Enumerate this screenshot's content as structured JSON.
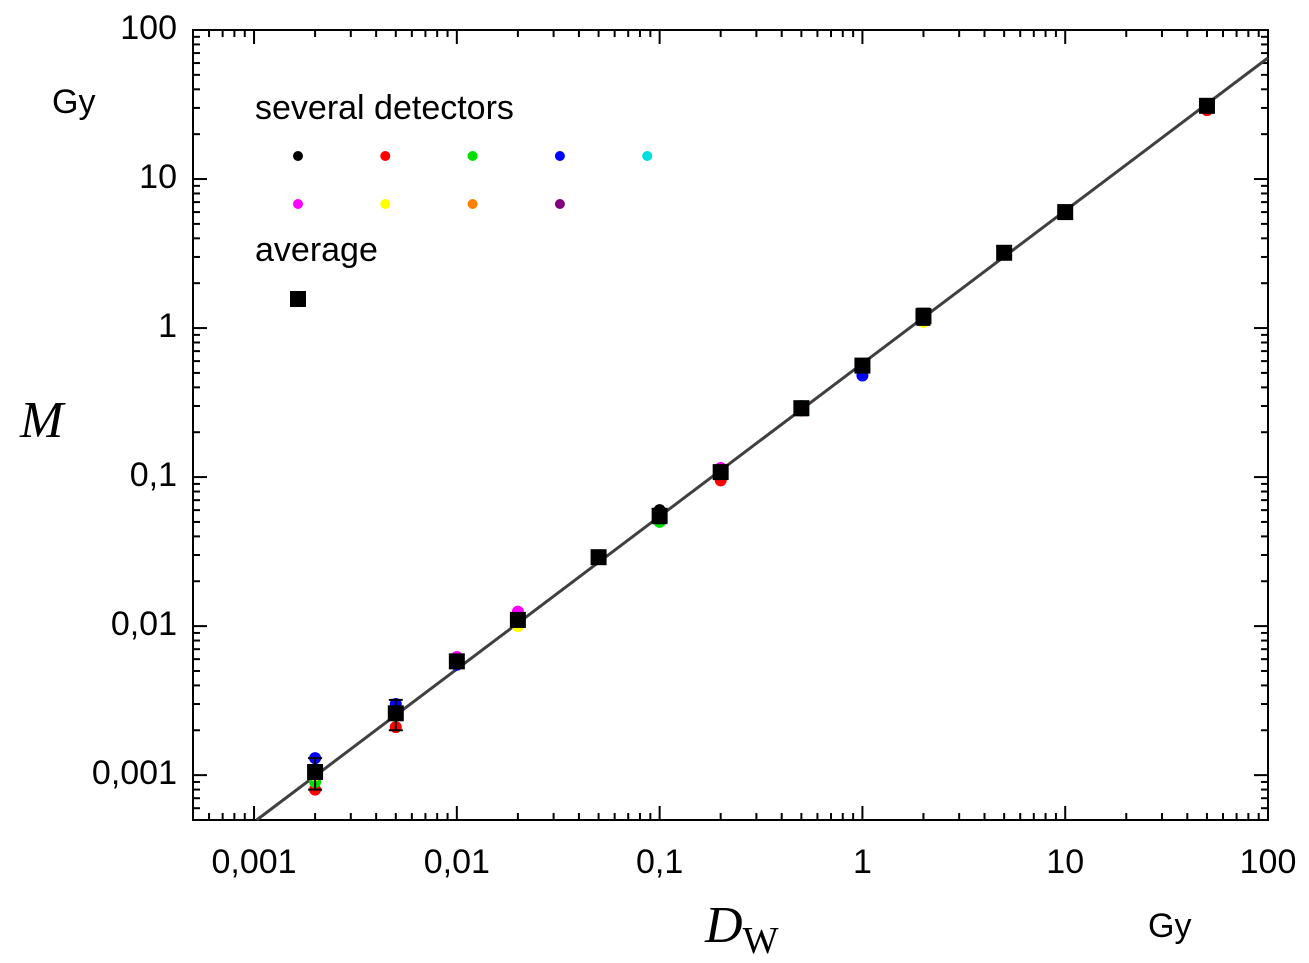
{
  "chart_data": {
    "type": "scatter",
    "xlim": [
      0.0005,
      100
    ],
    "ylim": [
      0.0005,
      100
    ],
    "log_x": true,
    "log_y": true,
    "minor_ticks": true,
    "xticks": [
      {
        "value": 0.001,
        "label": "0,001"
      },
      {
        "value": 0.01,
        "label": "0,01"
      },
      {
        "value": 0.1,
        "label": "0,1"
      },
      1,
      10,
      100
    ],
    "yticks": [
      {
        "value": 0.001,
        "label": "0,001"
      },
      {
        "value": 0.01,
        "label": "0,01"
      },
      {
        "value": 0.1,
        "label": "0,1"
      },
      1,
      10,
      100
    ],
    "y_label": "M",
    "y_unit": "Gy",
    "x_label": "D",
    "x_label_sub": "W",
    "x_unit": "Gy",
    "detectors_label": "several detectors",
    "average_label": "average",
    "x": [
      0.002,
      0.005,
      0.01,
      0.02,
      0.05,
      0.1,
      0.2,
      0.5,
      1,
      2,
      5,
      10,
      50
    ],
    "series": [
      {
        "color": "#000000",
        "values": [
          0.001,
          0.0026,
          0.0058,
          0.011,
          0.029,
          0.06,
          0.108,
          0.29,
          0.56,
          1.2,
          3.2,
          6.0,
          31
        ]
      },
      {
        "color": "#ff0000",
        "values": [
          0.0008,
          0.0021,
          0.006,
          0.012,
          0.029,
          0.056,
          0.095,
          0.28,
          0.55,
          1.2,
          3.2,
          6.0,
          29
        ]
      },
      {
        "color": "#00e000",
        "values": [
          0.0009,
          0.0025,
          0.0058,
          0.011,
          0.029,
          0.05,
          0.108,
          0.3,
          0.56,
          1.2,
          3.2,
          6.0,
          31
        ]
      },
      {
        "color": "#0000ff",
        "values": [
          0.0013,
          0.003,
          0.0055,
          0.011,
          0.029,
          0.055,
          0.11,
          0.29,
          0.48,
          1.2,
          3.2,
          6.0,
          31
        ]
      },
      {
        "color": "#00e0e0",
        "values": [
          null,
          null,
          null,
          null,
          0.029,
          null,
          null,
          null,
          null,
          null,
          null,
          null,
          null
        ]
      },
      {
        "color": "#ff00ff",
        "values": [
          0.001,
          0.0026,
          0.0062,
          0.0125,
          0.029,
          0.056,
          0.115,
          0.29,
          0.56,
          1.2,
          3.2,
          6.0,
          31
        ]
      },
      {
        "color": "#ffff00",
        "values": [
          0.001,
          0.0026,
          0.0058,
          0.01,
          0.029,
          0.055,
          0.108,
          0.29,
          0.56,
          1.1,
          3.2,
          6.0,
          31
        ]
      },
      {
        "color": "#ff8000",
        "values": [
          null,
          null,
          null,
          null,
          null,
          null,
          null,
          null,
          null,
          null,
          null,
          null,
          null
        ]
      },
      {
        "color": "#800080",
        "values": [
          null,
          null,
          null,
          null,
          null,
          null,
          0.11,
          null,
          null,
          null,
          null,
          null,
          null
        ]
      }
    ],
    "average": {
      "color": "#000000",
      "values": [
        0.00105,
        0.0026,
        0.0058,
        0.011,
        0.029,
        0.055,
        0.108,
        0.29,
        0.56,
        1.2,
        3.2,
        6.0,
        31
      ],
      "errors": [
        0.00025,
        0.0006,
        0.0005,
        0.001,
        0.002,
        0.006,
        0.01,
        0.03,
        0.05,
        0.15,
        0.2,
        0.5,
        2
      ]
    },
    "fit": {
      "color": "#404040",
      "x": [
        0.00103,
        100
      ],
      "y": [
        0.0005,
        65
      ]
    }
  }
}
